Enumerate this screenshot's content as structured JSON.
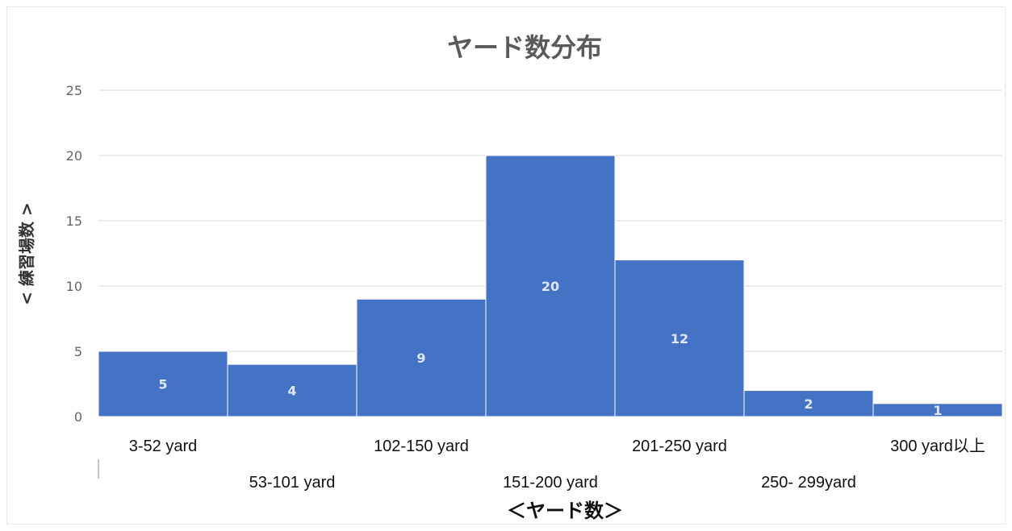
{
  "chart_data": {
    "type": "bar",
    "title": "ヤード数分布",
    "xlabel": "＜ヤード数＞",
    "ylabel": "< 練習場数 >",
    "categories": [
      "3-52 yard",
      "53-101 yard",
      "102-150 yard",
      "151-200 yard",
      "201-250 yard",
      "250- 299yard",
      "300 yard以上"
    ],
    "values": [
      5,
      4,
      9,
      20,
      12,
      2,
      1
    ],
    "data_labels": [
      "5",
      "4",
      "9",
      "20",
      "12",
      "2",
      "1"
    ],
    "ylim": [
      0,
      25
    ],
    "yticks": [
      0,
      5,
      10,
      15,
      20,
      25
    ],
    "grid": true,
    "bar_color": "#4472c4"
  }
}
